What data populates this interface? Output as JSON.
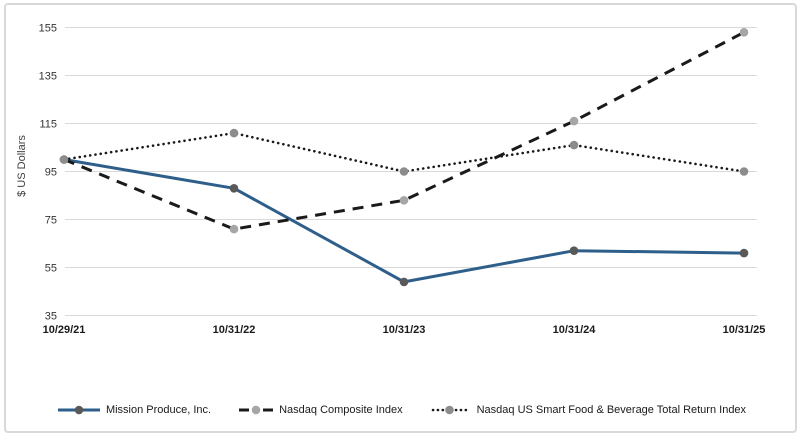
{
  "chart_data": {
    "type": "line",
    "title": "",
    "xlabel": "",
    "ylabel": "$ US Dollars",
    "categories": [
      "10/29/21",
      "10/31/22",
      "10/31/23",
      "10/31/24",
      "10/31/25"
    ],
    "y_ticks": [
      155,
      135,
      115,
      95,
      75,
      55,
      35
    ],
    "ylim": [
      35,
      155
    ],
    "grid": "horizontal-only",
    "legend_position": "bottom-center",
    "series": [
      {
        "name": "Mission Produce, Inc.",
        "values": [
          100,
          88,
          49,
          62,
          61
        ],
        "color": "#2E5F8B",
        "line_style": "solid",
        "marker": "circle",
        "marker_color": "#595959"
      },
      {
        "name": "Nasdaq Composite Index",
        "values": [
          100,
          71,
          83,
          116,
          153
        ],
        "color": "#1A1A1A",
        "line_style": "dashed",
        "marker": "circle",
        "marker_color": "#A6A6A6"
      },
      {
        "name": "Nasdaq US Smart Food & Beverage Total Return Index",
        "values": [
          100,
          111,
          95,
          106,
          95
        ],
        "color": "#1A1A1A",
        "line_style": "dotted",
        "marker": "circle",
        "marker_color": "#8C8C8C"
      }
    ],
    "style": {
      "gridline_color": "#D9D9D9",
      "frame_color": "#D9D9D9",
      "tick_label_color": "#333333",
      "x_label_color": "#1A1A1A",
      "accent_blue": "#2E5F8B"
    }
  }
}
